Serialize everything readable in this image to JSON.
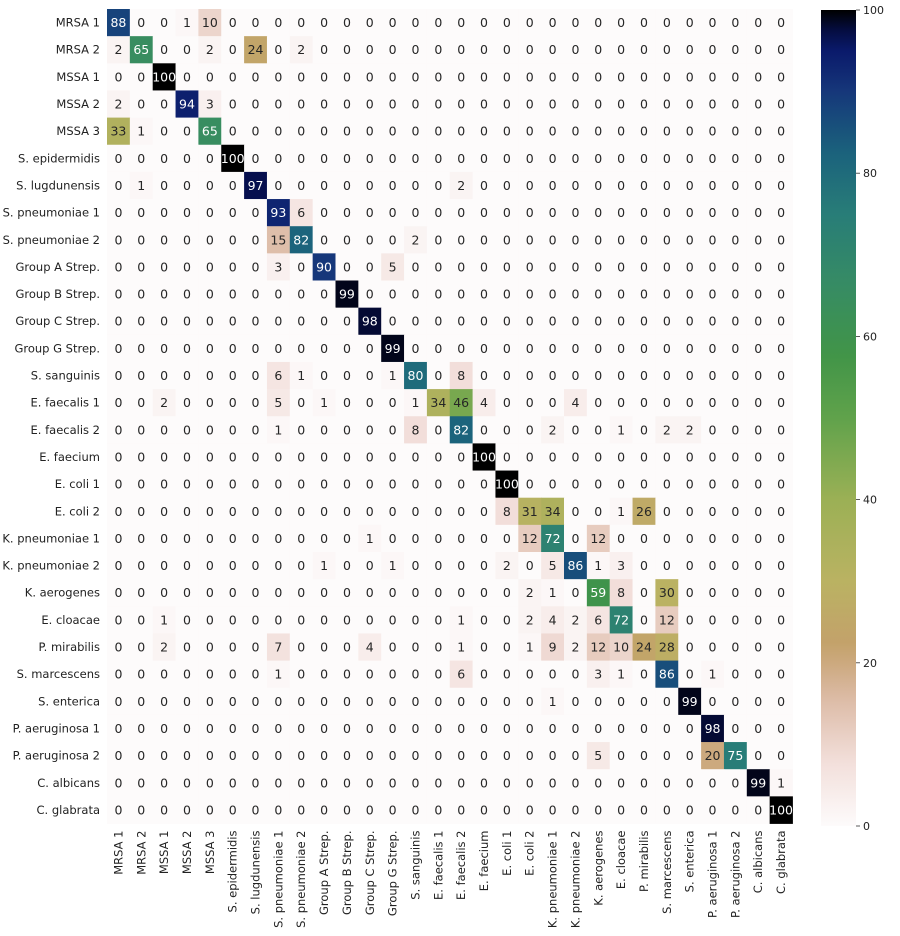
{
  "chart_data": {
    "type": "heatmap",
    "title": "",
    "xlabel": "",
    "ylabel": "",
    "colormap": "gist_earth_r",
    "vmin": 0,
    "vmax": 100,
    "colorbar_ticks": [
      0,
      20,
      40,
      60,
      80,
      100
    ],
    "labels": [
      "MRSA 1",
      "MRSA 2",
      "MSSA 1",
      "MSSA 2",
      "MSSA 3",
      "S. epidermidis",
      "S. lugdunensis",
      "S. pneumoniae 1",
      "S. pneumoniae 2",
      "Group A Strep.",
      "Group B Strep.",
      "Group C Strep.",
      "Group G Strep.",
      "S. sanguinis",
      "E. faecalis 1",
      "E. faecalis 2",
      "E. faecium",
      "E. coli 1",
      "E. coli 2",
      "K. pneumoniae 1",
      "K. pneumoniae 2",
      "K. aerogenes",
      "E. cloacae",
      "P. mirabilis",
      "S. marcescens",
      "S. enterica",
      "P. aeruginosa 1",
      "P. aeruginosa 2",
      "C. albicans",
      "C. glabrata"
    ],
    "matrix": [
      [
        88,
        0,
        0,
        1,
        10,
        0,
        0,
        0,
        0,
        0,
        0,
        0,
        0,
        0,
        0,
        0,
        0,
        0,
        0,
        0,
        0,
        0,
        0,
        0,
        0,
        0,
        0,
        0,
        0,
        0
      ],
      [
        2,
        65,
        0,
        0,
        2,
        0,
        24,
        0,
        2,
        0,
        0,
        0,
        0,
        0,
        0,
        0,
        0,
        0,
        0,
        0,
        0,
        0,
        0,
        0,
        0,
        0,
        0,
        0,
        0,
        0
      ],
      [
        0,
        0,
        100,
        0,
        0,
        0,
        0,
        0,
        0,
        0,
        0,
        0,
        0,
        0,
        0,
        0,
        0,
        0,
        0,
        0,
        0,
        0,
        0,
        0,
        0,
        0,
        0,
        0,
        0,
        0
      ],
      [
        2,
        0,
        0,
        94,
        3,
        0,
        0,
        0,
        0,
        0,
        0,
        0,
        0,
        0,
        0,
        0,
        0,
        0,
        0,
        0,
        0,
        0,
        0,
        0,
        0,
        0,
        0,
        0,
        0,
        0
      ],
      [
        33,
        1,
        0,
        0,
        65,
        0,
        0,
        0,
        0,
        0,
        0,
        0,
        0,
        0,
        0,
        0,
        0,
        0,
        0,
        0,
        0,
        0,
        0,
        0,
        0,
        0,
        0,
        0,
        0,
        0
      ],
      [
        0,
        0,
        0,
        0,
        0,
        100,
        0,
        0,
        0,
        0,
        0,
        0,
        0,
        0,
        0,
        0,
        0,
        0,
        0,
        0,
        0,
        0,
        0,
        0,
        0,
        0,
        0,
        0,
        0,
        0
      ],
      [
        0,
        1,
        0,
        0,
        0,
        0,
        97,
        0,
        0,
        0,
        0,
        0,
        0,
        0,
        0,
        2,
        0,
        0,
        0,
        0,
        0,
        0,
        0,
        0,
        0,
        0,
        0,
        0,
        0,
        0
      ],
      [
        0,
        0,
        0,
        0,
        0,
        0,
        0,
        93,
        6,
        0,
        0,
        0,
        0,
        0,
        0,
        0,
        0,
        0,
        0,
        0,
        0,
        0,
        0,
        0,
        0,
        0,
        0,
        0,
        0,
        0
      ],
      [
        0,
        0,
        0,
        0,
        0,
        0,
        0,
        15,
        82,
        0,
        0,
        0,
        0,
        2,
        0,
        0,
        0,
        0,
        0,
        0,
        0,
        0,
        0,
        0,
        0,
        0,
        0,
        0,
        0,
        0
      ],
      [
        0,
        0,
        0,
        0,
        0,
        0,
        0,
        3,
        0,
        90,
        0,
        0,
        5,
        0,
        0,
        0,
        0,
        0,
        0,
        0,
        0,
        0,
        0,
        0,
        0,
        0,
        0,
        0,
        0,
        0
      ],
      [
        0,
        0,
        0,
        0,
        0,
        0,
        0,
        0,
        0,
        0,
        99,
        0,
        0,
        0,
        0,
        0,
        0,
        0,
        0,
        0,
        0,
        0,
        0,
        0,
        0,
        0,
        0,
        0,
        0,
        0
      ],
      [
        0,
        0,
        0,
        0,
        0,
        0,
        0,
        0,
        0,
        0,
        0,
        98,
        0,
        0,
        0,
        0,
        0,
        0,
        0,
        0,
        0,
        0,
        0,
        0,
        0,
        0,
        0,
        0,
        0,
        0
      ],
      [
        0,
        0,
        0,
        0,
        0,
        0,
        0,
        0,
        0,
        0,
        0,
        0,
        99,
        0,
        0,
        0,
        0,
        0,
        0,
        0,
        0,
        0,
        0,
        0,
        0,
        0,
        0,
        0,
        0,
        0
      ],
      [
        0,
        0,
        0,
        0,
        0,
        0,
        0,
        6,
        1,
        0,
        0,
        0,
        1,
        80,
        0,
        8,
        0,
        0,
        0,
        0,
        0,
        0,
        0,
        0,
        0,
        0,
        0,
        0,
        0,
        0
      ],
      [
        0,
        0,
        2,
        0,
        0,
        0,
        0,
        5,
        0,
        1,
        0,
        0,
        0,
        1,
        34,
        46,
        4,
        0,
        0,
        0,
        4,
        0,
        0,
        0,
        0,
        0,
        0,
        0,
        0,
        0
      ],
      [
        0,
        0,
        0,
        0,
        0,
        0,
        0,
        1,
        0,
        0,
        0,
        0,
        0,
        8,
        0,
        82,
        0,
        0,
        0,
        2,
        0,
        0,
        1,
        0,
        2,
        2,
        0,
        0,
        0,
        0
      ],
      [
        0,
        0,
        0,
        0,
        0,
        0,
        0,
        0,
        0,
        0,
        0,
        0,
        0,
        0,
        0,
        0,
        100,
        0,
        0,
        0,
        0,
        0,
        0,
        0,
        0,
        0,
        0,
        0,
        0,
        0
      ],
      [
        0,
        0,
        0,
        0,
        0,
        0,
        0,
        0,
        0,
        0,
        0,
        0,
        0,
        0,
        0,
        0,
        0,
        100,
        0,
        0,
        0,
        0,
        0,
        0,
        0,
        0,
        0,
        0,
        0,
        0
      ],
      [
        0,
        0,
        0,
        0,
        0,
        0,
        0,
        0,
        0,
        0,
        0,
        0,
        0,
        0,
        0,
        0,
        0,
        8,
        31,
        34,
        0,
        0,
        1,
        26,
        0,
        0,
        0,
        0,
        0,
        0
      ],
      [
        0,
        0,
        0,
        0,
        0,
        0,
        0,
        0,
        0,
        0,
        0,
        1,
        0,
        0,
        0,
        0,
        0,
        0,
        12,
        72,
        0,
        12,
        0,
        0,
        0,
        0,
        0,
        0,
        0,
        0
      ],
      [
        0,
        0,
        0,
        0,
        0,
        0,
        0,
        0,
        0,
        1,
        0,
        0,
        1,
        0,
        0,
        0,
        0,
        2,
        0,
        5,
        86,
        1,
        3,
        0,
        0,
        0,
        0,
        0,
        0,
        0
      ],
      [
        0,
        0,
        0,
        0,
        0,
        0,
        0,
        0,
        0,
        0,
        0,
        0,
        0,
        0,
        0,
        0,
        0,
        0,
        2,
        1,
        0,
        59,
        8,
        0,
        30,
        0,
        0,
        0,
        0,
        0
      ],
      [
        0,
        0,
        1,
        0,
        0,
        0,
        0,
        0,
        0,
        0,
        0,
        0,
        0,
        0,
        0,
        1,
        0,
        0,
        2,
        4,
        2,
        6,
        72,
        0,
        12,
        0,
        0,
        0,
        0,
        0
      ],
      [
        0,
        0,
        2,
        0,
        0,
        0,
        0,
        7,
        0,
        0,
        0,
        4,
        0,
        0,
        0,
        1,
        0,
        0,
        1,
        9,
        2,
        12,
        10,
        24,
        28,
        0,
        0,
        0,
        0,
        0
      ],
      [
        0,
        0,
        0,
        0,
        0,
        0,
        0,
        1,
        0,
        0,
        0,
        0,
        0,
        0,
        0,
        6,
        0,
        0,
        0,
        0,
        0,
        3,
        1,
        0,
        86,
        0,
        1,
        0,
        0,
        0
      ],
      [
        0,
        0,
        0,
        0,
        0,
        0,
        0,
        0,
        0,
        0,
        0,
        0,
        0,
        0,
        0,
        0,
        0,
        0,
        0,
        1,
        0,
        0,
        0,
        0,
        0,
        99,
        0,
        0,
        0,
        0
      ],
      [
        0,
        0,
        0,
        0,
        0,
        0,
        0,
        0,
        0,
        0,
        0,
        0,
        0,
        0,
        0,
        0,
        0,
        0,
        0,
        0,
        0,
        0,
        0,
        0,
        0,
        0,
        98,
        0,
        0,
        0
      ],
      [
        0,
        0,
        0,
        0,
        0,
        0,
        0,
        0,
        0,
        0,
        0,
        0,
        0,
        0,
        0,
        0,
        0,
        0,
        0,
        0,
        0,
        5,
        0,
        0,
        0,
        0,
        20,
        75,
        0,
        0
      ],
      [
        0,
        0,
        0,
        0,
        0,
        0,
        0,
        0,
        0,
        0,
        0,
        0,
        0,
        0,
        0,
        0,
        0,
        0,
        0,
        0,
        0,
        0,
        0,
        0,
        0,
        0,
        0,
        0,
        99,
        1
      ],
      [
        0,
        0,
        0,
        0,
        0,
        0,
        0,
        0,
        0,
        0,
        0,
        0,
        0,
        0,
        0,
        0,
        0,
        0,
        0,
        0,
        0,
        0,
        0,
        0,
        0,
        0,
        0,
        0,
        0,
        100
      ]
    ]
  }
}
